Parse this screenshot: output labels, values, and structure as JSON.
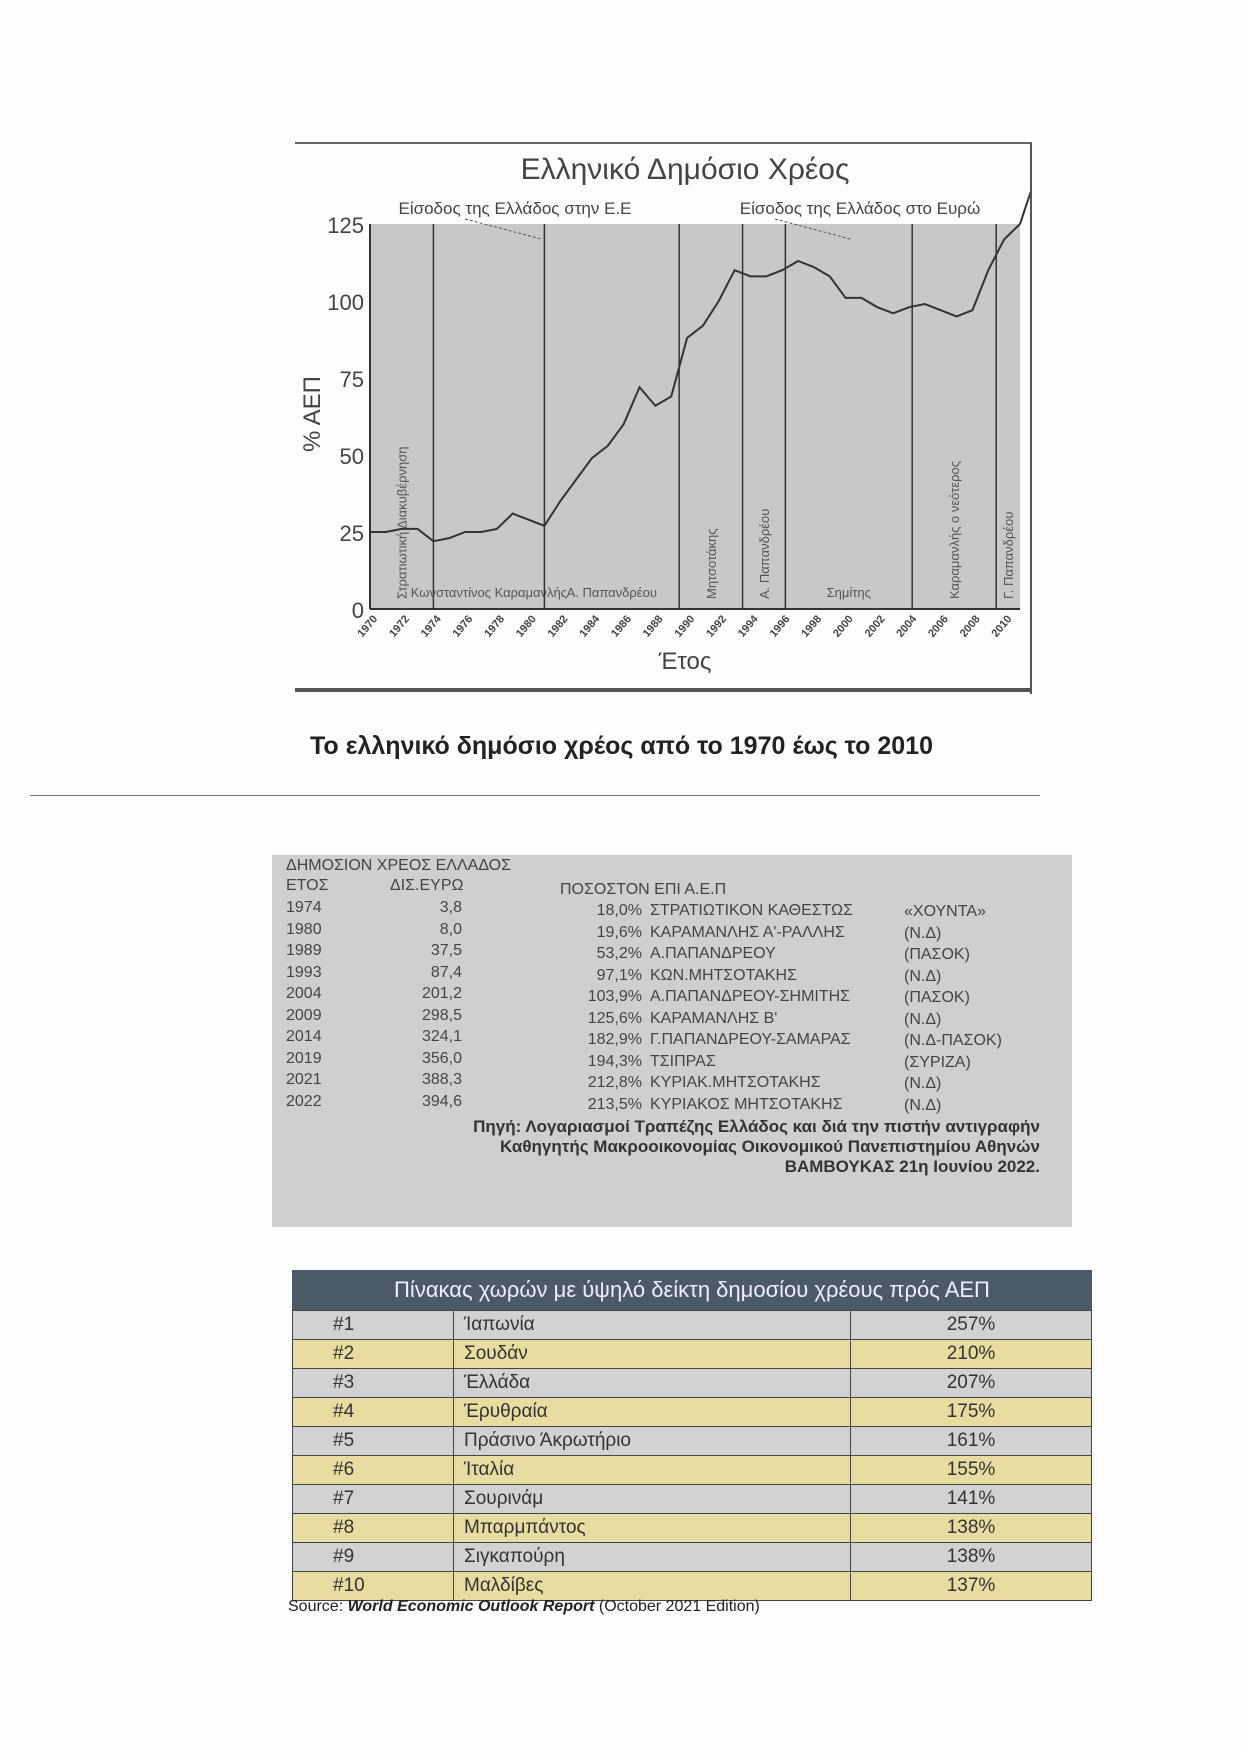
{
  "chart": {
    "title": "Ελληνικό Δημόσιο Χρέος",
    "ylabel": "% ΑΕΠ",
    "xlabel": "Έτος",
    "annotations": [
      "Είσοδος της Ελλάδος στην Ε.Ε",
      "Είσοδος της Ελλάδος στο Ευρώ"
    ],
    "periods": [
      {
        "label": "Στρατιωτική Διακυβέρνηση",
        "from": 1970,
        "to": 1974,
        "vertical": true
      },
      {
        "label": "Κωνσταντίνος Καραμανλής",
        "from": 1974,
        "to": 1981,
        "vertical": false
      },
      {
        "label": "Α. Παπανδρέου",
        "from": 1981,
        "to": 1989.5,
        "vertical": false
      },
      {
        "label": "Μητσοτάκης",
        "from": 1989.5,
        "to": 1993.5,
        "vertical": true
      },
      {
        "label": "Α. Παπανδρέου",
        "from": 1993.5,
        "to": 1996.2,
        "vertical": true
      },
      {
        "label": "Σημίτης",
        "from": 1996.2,
        "to": 2004.2,
        "vertical": false
      },
      {
        "label": "Καραμανλής ο νεότερος",
        "from": 2004.2,
        "to": 2009.5,
        "vertical": true
      },
      {
        "label": "Γ. Παπανδρέου",
        "from": 2009.5,
        "to": 2011,
        "vertical": true
      }
    ],
    "caption": "Το ελληνικό δημόσιο χρέος από το 1970 έως το 2010"
  },
  "chart_data": {
    "type": "line",
    "title": "Ελληνικό Δημόσιο Χρέος",
    "xlabel": "Έτος",
    "ylabel": "% ΑΕΠ",
    "xlim": [
      1970,
      2011
    ],
    "ylim": [
      0,
      125
    ],
    "yticks": [
      0,
      25,
      50,
      75,
      100,
      125
    ],
    "xticks": [
      1970,
      1972,
      1974,
      1976,
      1978,
      1980,
      1982,
      1984,
      1986,
      1988,
      1990,
      1992,
      1994,
      1996,
      1998,
      2000,
      2002,
      2004,
      2006,
      2008,
      2010
    ],
    "grid": false,
    "x": [
      1970,
      1971,
      1972,
      1973,
      1974,
      1975,
      1976,
      1977,
      1978,
      1979,
      1980,
      1981,
      1982,
      1983,
      1984,
      1985,
      1986,
      1987,
      1988,
      1989,
      1990,
      1991,
      1992,
      1993,
      1994,
      1995,
      1996,
      1997,
      1998,
      1999,
      2000,
      2001,
      2002,
      2003,
      2004,
      2005,
      2006,
      2007,
      2008,
      2009,
      2010,
      2011
    ],
    "y": [
      25,
      25,
      26,
      26,
      22,
      23,
      25,
      25,
      26,
      31,
      29,
      27,
      35,
      42,
      49,
      53,
      60,
      72,
      66,
      69,
      88,
      92,
      100,
      110,
      108,
      108,
      110,
      113,
      111,
      108,
      101,
      101,
      98,
      96,
      98,
      99,
      97,
      95,
      97,
      110,
      120,
      125
    ]
  },
  "debt_table": {
    "title": "ΔΗΜΟΣΙΟΝ ΧΡΕΟΣ ΕΛΛΑΔΟΣ",
    "headers": [
      "ΕΤΟΣ",
      "ΔΙΣ.ΕΥΡΩ",
      "ΠΟΣΟΣΤΟΝ ΕΠΙ Α.Ε.Π"
    ],
    "rows": [
      {
        "year": "1974",
        "bn": "3,8",
        "pct": "18,0%",
        "gov": "ΣΤΡΑΤΙΩΤΙΚΟΝ ΚΑΘΕΣΤΩΣ",
        "party": "«ΧΟΥΝΤΑ»"
      },
      {
        "year": "1980",
        "bn": "8,0",
        "pct": "19,6%",
        "gov": "ΚΑΡΑΜΑΝΛΗΣ Α'-ΡΑΛΛΗΣ",
        "party": "(Ν.Δ)"
      },
      {
        "year": "1989",
        "bn": "37,5",
        "pct": "53,2%",
        "gov": "Α.ΠΑΠΑΝΔΡΕΟΥ",
        "party": "(ΠΑΣΟΚ)"
      },
      {
        "year": "1993",
        "bn": "87,4",
        "pct": "97,1%",
        "gov": "ΚΩΝ.ΜΗΤΣΟΤΑΚΗΣ",
        "party": "(Ν.Δ)"
      },
      {
        "year": "2004",
        "bn": "201,2",
        "pct": "103,9%",
        "gov": "Α.ΠΑΠΑΝΔΡΕΟΥ-ΣΗΜΙΤΗΣ",
        "party": "(ΠΑΣΟΚ)"
      },
      {
        "year": "2009",
        "bn": "298,5",
        "pct": "125,6%",
        "gov": "ΚΑΡΑΜΑΝΛΗΣ Β'",
        "party": "(Ν.Δ)"
      },
      {
        "year": "2014",
        "bn": "324,1",
        "pct": "182,9%",
        "gov": "Γ.ΠΑΠΑΝΔΡΕΟΥ-ΣΑΜΑΡΑΣ",
        "party": "(Ν.Δ-ΠΑΣΟΚ)"
      },
      {
        "year": "2019",
        "bn": "356,0",
        "pct": "194,3%",
        "gov": "ΤΣΙΠΡΑΣ",
        "party": "(ΣΥΡΙΖΑ)"
      },
      {
        "year": "2021",
        "bn": "388,3",
        "pct": "212,8%",
        "gov": "ΚΥΡΙΑΚ.ΜΗΤΣΟΤΑΚΗΣ",
        "party": "(Ν.Δ)"
      },
      {
        "year": "2022",
        "bn": "394,6",
        "pct": "213,5%",
        "gov": "ΚΥΡΙΑΚΟΣ ΜΗΤΣΟΤΑΚΗΣ",
        "party": "(Ν.Δ)"
      }
    ],
    "source_lines": [
      "Πηγή: Λογαριασμοί Τραπέζης Ελλάδος και διά την πιστήν αντιγραφήν",
      "Καθηγητής Μακροοικονομίας Οικονομικού Πανεπιστημίου Αθηνών",
      "ΒΑΜΒΟΥΚΑΣ 21η Ιουνίου 2022."
    ]
  },
  "countries_table": {
    "title": "Πίνακας χωρών με ύψηλό δείκτη δημοσίου χρέους πρός ΑΕΠ",
    "rows": [
      {
        "rank": "#1",
        "country": "Ίαπωνία",
        "value": "257%"
      },
      {
        "rank": "#2",
        "country": "Σουδάν",
        "value": "210%"
      },
      {
        "rank": "#3",
        "country": "Έλλάδα",
        "value": "207%"
      },
      {
        "rank": "#4",
        "country": "Έρυθραία",
        "value": "175%"
      },
      {
        "rank": "#5",
        "country": "Πράσινο Άκρωτήριο",
        "value": "161%"
      },
      {
        "rank": "#6",
        "country": "Ίταλία",
        "value": "155%"
      },
      {
        "rank": "#7",
        "country": "Σουρινάμ",
        "value": "141%"
      },
      {
        "rank": "#8",
        "country": "Μπαρμπάντος",
        "value": "138%"
      },
      {
        "rank": "#9",
        "country": "Σιγκαπούρη",
        "value": "138%"
      },
      {
        "rank": "#10",
        "country": "Μαλδίβες",
        "value": "137%"
      }
    ],
    "source_prefix": "Source: ",
    "source_title": "World Economic Outlook Report",
    "source_suffix": " (October 2021 Edition)"
  },
  "colors": {
    "plot_bg": "#c8c8c8",
    "header_bg": "#4a5a68",
    "row_gray": "#d2d2d2",
    "row_yellow": "#e8dca0"
  }
}
